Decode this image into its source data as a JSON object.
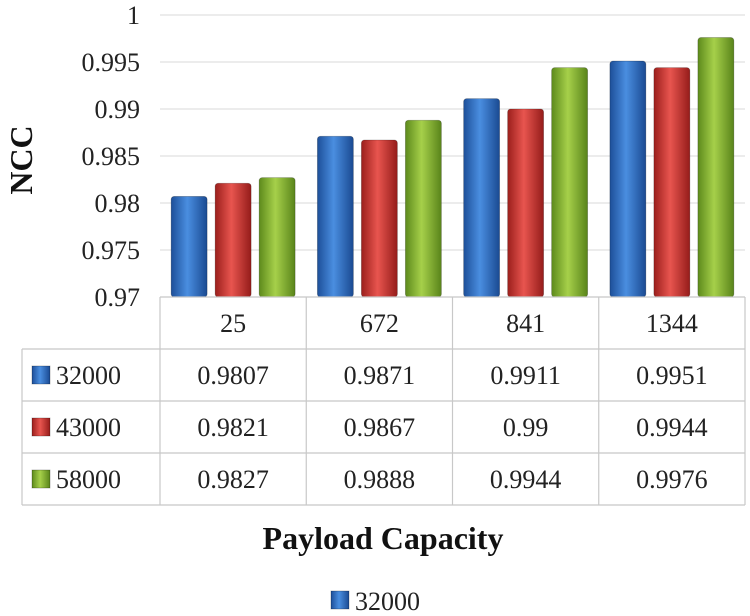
{
  "chart_data": {
    "type": "bar",
    "xlabel": "Payload Capacity",
    "ylabel": "NCC",
    "categories": [
      "25",
      "672",
      "841",
      "1344"
    ],
    "ylim": [
      0.97,
      1
    ],
    "yticks": [
      "0.97",
      "0.975",
      "0.98",
      "0.985",
      "0.99",
      "0.995",
      "1"
    ],
    "grid": true,
    "series": [
      {
        "name": "32000",
        "color": "#2e6fc7",
        "values": [
          0.9807,
          0.9871,
          0.9911,
          0.9951
        ],
        "labels": [
          "0.9807",
          "0.9871",
          "0.9911",
          "0.9951"
        ]
      },
      {
        "name": "43000",
        "color": "#d23a35",
        "values": [
          0.9821,
          0.9867,
          0.99,
          0.9944
        ],
        "labels": [
          "0.9821",
          "0.9867",
          "0.99",
          "0.9944"
        ]
      },
      {
        "name": "58000",
        "color": "#86b832",
        "values": [
          0.9827,
          0.9888,
          0.9944,
          0.9976
        ],
        "labels": [
          "0.9827",
          "0.9888",
          "0.9944",
          "0.9976"
        ]
      }
    ],
    "legend": {
      "position": "bottom",
      "entries": [
        "32000"
      ]
    },
    "data_table": true
  }
}
